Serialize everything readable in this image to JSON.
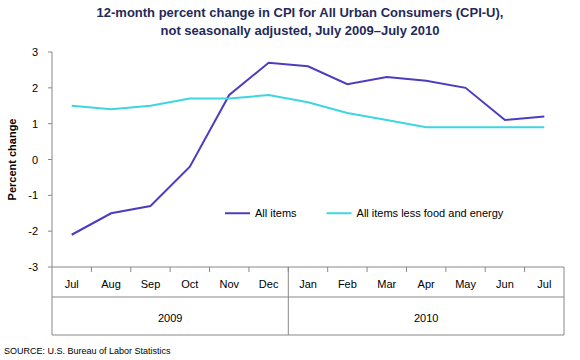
{
  "chart_data": {
    "type": "line",
    "title": "12-month percent change in CPI for All Urban Consumers (CPI-U),",
    "subtitle": "not seasonally adjusted, July 2009–July 2010",
    "y_label": "Percent change",
    "source": "SOURCE: U.S. Bureau of Labor Statistics",
    "categories": [
      "Jul",
      "Aug",
      "Sep",
      "Oct",
      "Nov",
      "Dec",
      "Jan",
      "Feb",
      "Mar",
      "Apr",
      "May",
      "Jun",
      "Jul"
    ],
    "category_groups": [
      {
        "label": "2009",
        "count": 6
      },
      {
        "label": "2010",
        "count": 7
      }
    ],
    "series": [
      {
        "name": "All items",
        "color": "#4b3cc0",
        "values": [
          -2.1,
          -1.5,
          -1.3,
          -0.2,
          1.8,
          2.7,
          2.6,
          2.1,
          2.3,
          2.2,
          2.0,
          1.1,
          1.2
        ]
      },
      {
        "name": "All items less food and energy",
        "color": "#3dd6e0",
        "values": [
          1.5,
          1.4,
          1.5,
          1.7,
          1.7,
          1.8,
          1.6,
          1.3,
          1.1,
          0.9,
          0.9,
          0.9,
          0.9
        ]
      }
    ],
    "ylim": [
      -3,
      3
    ],
    "yticks": [
      -3,
      -2,
      -1,
      0,
      1,
      2,
      3
    ],
    "grid": false,
    "legend": "lower right"
  }
}
